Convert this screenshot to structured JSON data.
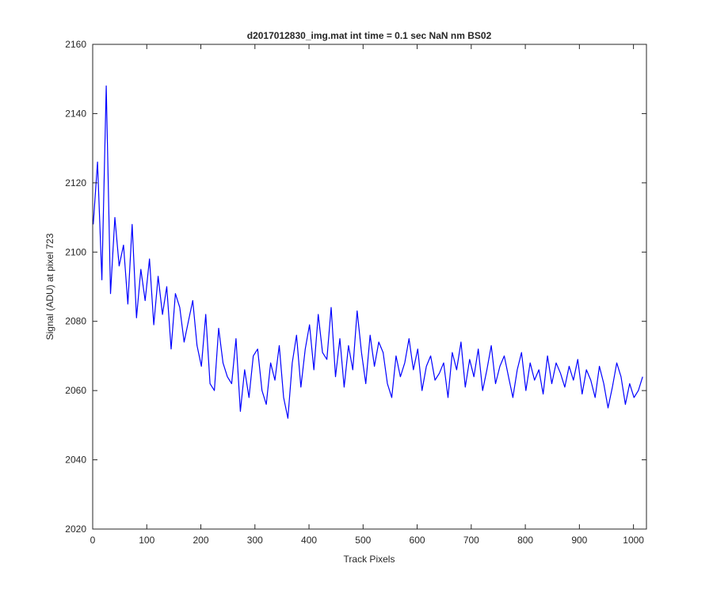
{
  "chart_data": {
    "type": "line",
    "title": "d2017012830_img.mat int time = 0.1 sec  NaN nm BS02",
    "xlabel": "Track Pixels",
    "ylabel": "Signal (ADU) at pixel 723",
    "xlim": [
      0,
      1024
    ],
    "ylim": [
      2020,
      2160
    ],
    "xticks": [
      0,
      100,
      200,
      300,
      400,
      500,
      600,
      700,
      800,
      900,
      1000
    ],
    "yticks": [
      2020,
      2040,
      2060,
      2080,
      2100,
      2120,
      2140,
      2160
    ],
    "grid": false,
    "series": [
      {
        "color": "#0000ff",
        "x_start": 1,
        "x_step": 8,
        "values": [
          2108,
          2126,
          2092,
          2148,
          2088,
          2110,
          2096,
          2102,
          2085,
          2108,
          2081,
          2095,
          2086,
          2098,
          2079,
          2093,
          2082,
          2090,
          2072,
          2088,
          2084,
          2074,
          2080,
          2086,
          2073,
          2067,
          2082,
          2062,
          2060,
          2078,
          2068,
          2064,
          2062,
          2075,
          2054,
          2066,
          2058,
          2070,
          2072,
          2060,
          2056,
          2068,
          2063,
          2073,
          2058,
          2052,
          2068,
          2076,
          2061,
          2072,
          2079,
          2066,
          2082,
          2071,
          2069,
          2084,
          2064,
          2075,
          2061,
          2073,
          2066,
          2083,
          2071,
          2062,
          2076,
          2067,
          2074,
          2071,
          2062,
          2058,
          2070,
          2064,
          2068,
          2075,
          2066,
          2072,
          2060,
          2067,
          2070,
          2063,
          2065,
          2068,
          2058,
          2071,
          2066,
          2074,
          2061,
          2069,
          2064,
          2072,
          2060,
          2066,
          2073,
          2062,
          2067,
          2070,
          2064,
          2058,
          2066,
          2071,
          2060,
          2068,
          2063,
          2066,
          2059,
          2070,
          2062,
          2068,
          2065,
          2061,
          2067,
          2063,
          2069,
          2059,
          2066,
          2063,
          2058,
          2067,
          2062,
          2055,
          2061,
          2068,
          2064,
          2056,
          2062,
          2058,
          2060,
          2064
        ]
      }
    ]
  }
}
